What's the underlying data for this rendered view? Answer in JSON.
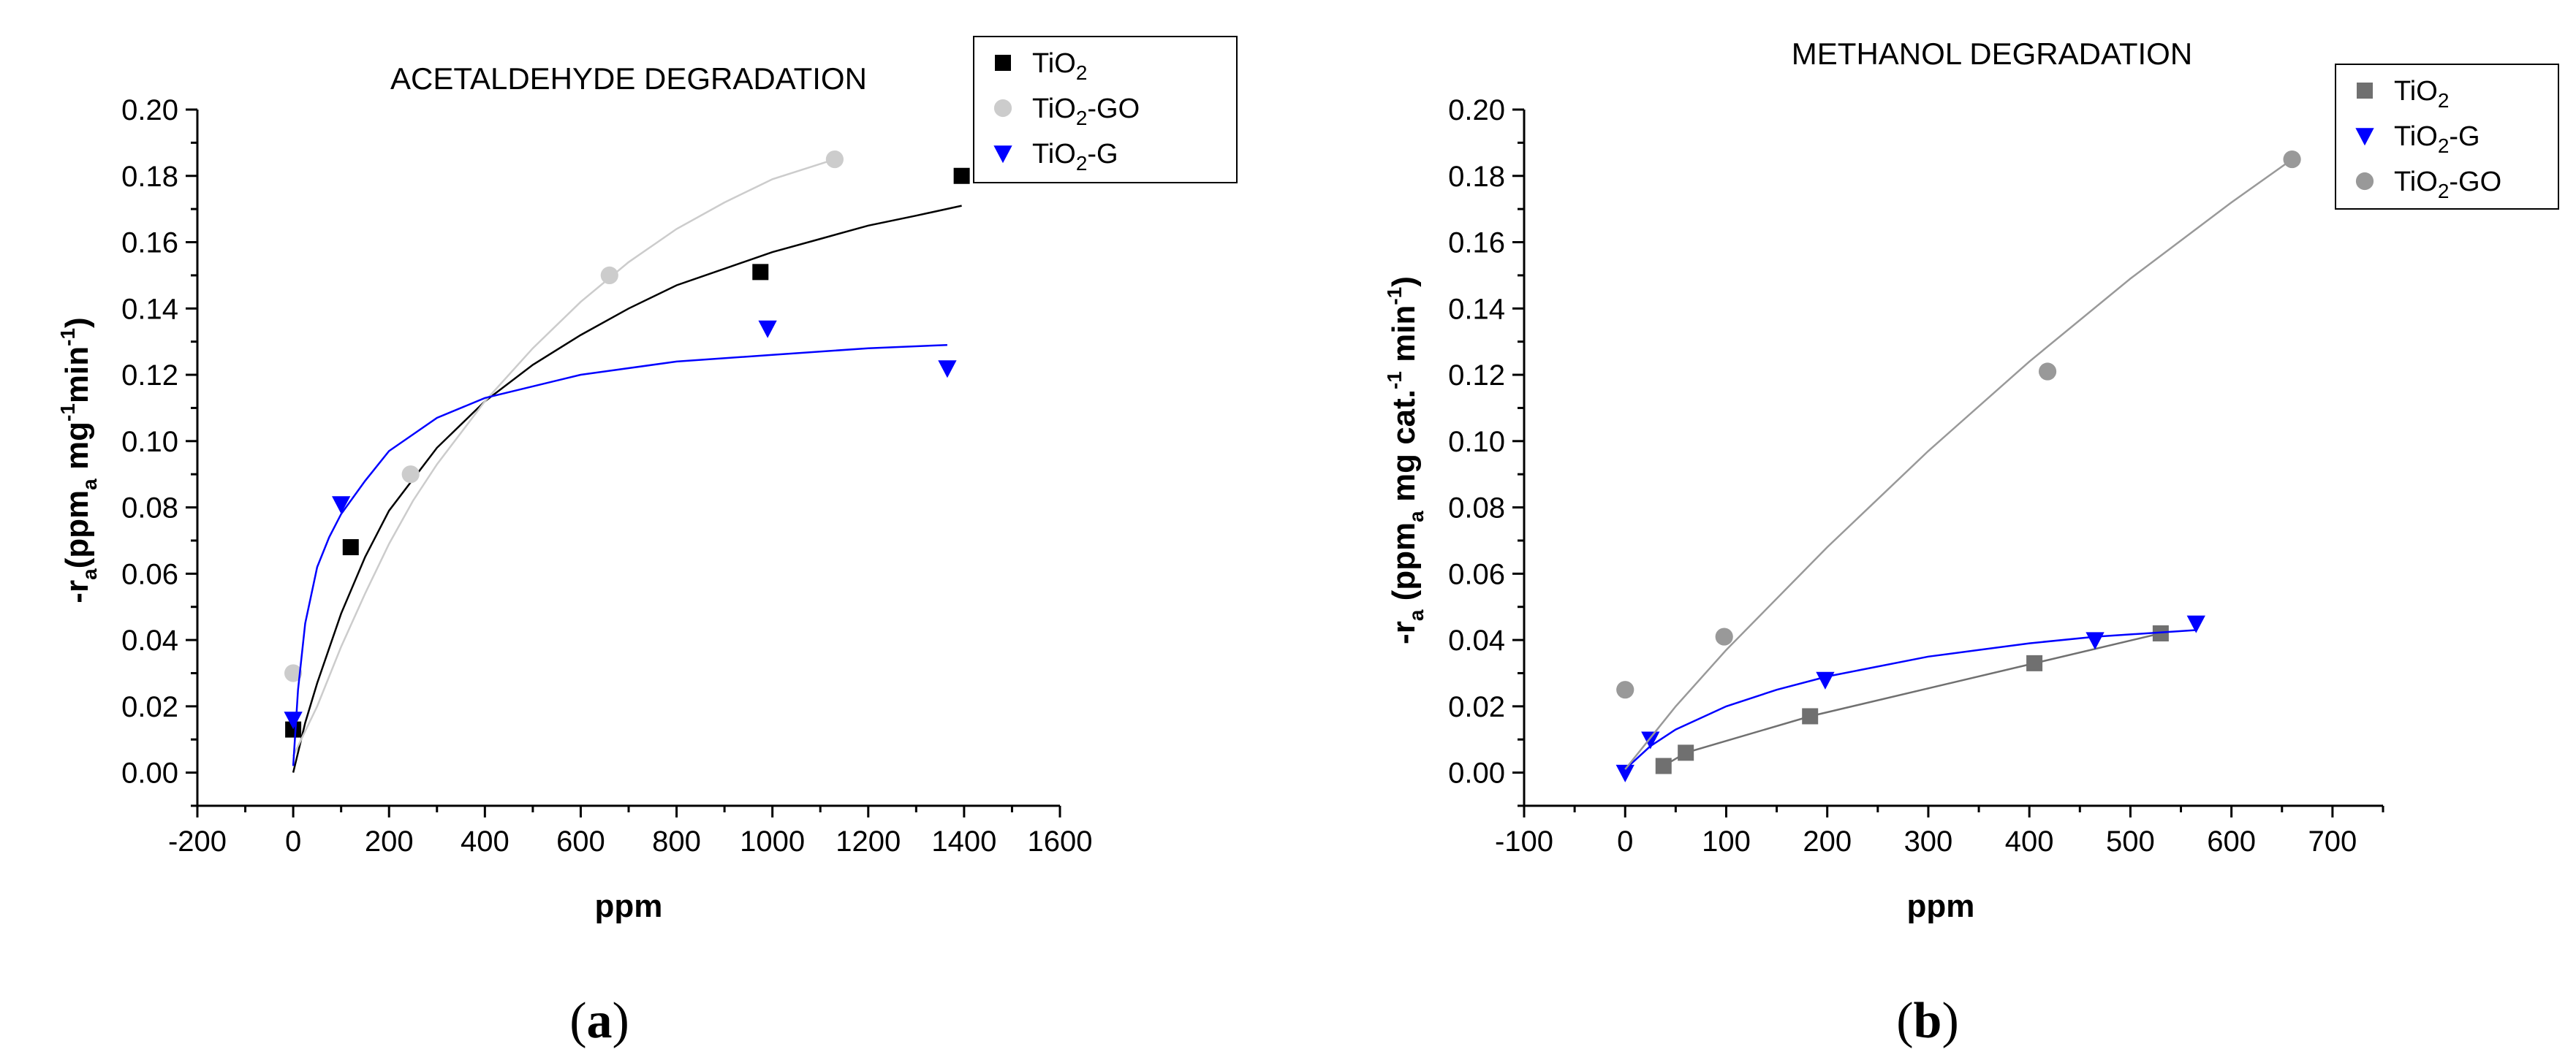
{
  "chart_data": [
    {
      "type": "scatter",
      "panel_label": "a",
      "title": "ACETALDEHYDE DEGRADATION",
      "xlabel": "ppm",
      "ylabel_parts": [
        "-r",
        "a",
        "(ppm",
        "a",
        " mg",
        "-1",
        "min",
        "-1",
        ")"
      ],
      "xlim": [
        -200,
        1600
      ],
      "ylim": [
        -0.01,
        0.2
      ],
      "xticks": [
        "-200",
        "0",
        "200",
        "400",
        "600",
        "800",
        "1000",
        "1200",
        "1400",
        "1600"
      ],
      "yticks": [
        "0.00",
        "0.02",
        "0.04",
        "0.06",
        "0.08",
        "0.10",
        "0.12",
        "0.14",
        "0.16",
        "0.18",
        "0.20"
      ],
      "series": [
        {
          "name_main": "TiO",
          "name_sub": "2",
          "name_suffix": "",
          "marker": "square",
          "color": "#000000",
          "points": [
            [
              0,
              0.013
            ],
            [
              120,
              0.068
            ],
            [
              975,
              0.151
            ],
            [
              1395,
              0.18
            ]
          ],
          "fit": [
            [
              0,
              0.0
            ],
            [
              25,
              0.015
            ],
            [
              50,
              0.027
            ],
            [
              100,
              0.048
            ],
            [
              150,
              0.065
            ],
            [
              200,
              0.079
            ],
            [
              300,
              0.098
            ],
            [
              400,
              0.112
            ],
            [
              500,
              0.123
            ],
            [
              600,
              0.132
            ],
            [
              700,
              0.14
            ],
            [
              800,
              0.147
            ],
            [
              900,
              0.152
            ],
            [
              1000,
              0.157
            ],
            [
              1100,
              0.161
            ],
            [
              1200,
              0.165
            ],
            [
              1300,
              0.168
            ],
            [
              1395,
              0.171
            ]
          ]
        },
        {
          "name_main": "TiO",
          "name_sub": "2",
          "name_suffix": "-GO",
          "marker": "circle",
          "color": "#cccccc",
          "points": [
            [
              0,
              0.03
            ],
            [
              245,
              0.09
            ],
            [
              660,
              0.15
            ],
            [
              1130,
              0.185
            ]
          ],
          "fit": [
            [
              0,
              0.005
            ],
            [
              50,
              0.02
            ],
            [
              100,
              0.038
            ],
            [
              150,
              0.054
            ],
            [
              200,
              0.069
            ],
            [
              250,
              0.082
            ],
            [
              300,
              0.093
            ],
            [
              400,
              0.112
            ],
            [
              500,
              0.128
            ],
            [
              600,
              0.142
            ],
            [
              700,
              0.154
            ],
            [
              800,
              0.164
            ],
            [
              900,
              0.172
            ],
            [
              1000,
              0.179
            ],
            [
              1130,
              0.185
            ]
          ]
        },
        {
          "name_main": "TiO",
          "name_sub": "2",
          "name_suffix": "-G",
          "marker": "triangle-down",
          "color": "#0000ff",
          "points": [
            [
              0,
              0.016
            ],
            [
              100,
              0.081
            ],
            [
              990,
              0.134
            ],
            [
              1365,
              0.122
            ]
          ],
          "fit": [
            [
              0,
              0.002
            ],
            [
              10,
              0.025
            ],
            [
              25,
              0.045
            ],
            [
              50,
              0.062
            ],
            [
              75,
              0.071
            ],
            [
              100,
              0.078
            ],
            [
              150,
              0.088
            ],
            [
              200,
              0.097
            ],
            [
              300,
              0.107
            ],
            [
              400,
              0.113
            ],
            [
              600,
              0.12
            ],
            [
              800,
              0.124
            ],
            [
              1000,
              0.126
            ],
            [
              1200,
              0.128
            ],
            [
              1365,
              0.129
            ]
          ]
        }
      ]
    },
    {
      "type": "scatter",
      "panel_label": "b",
      "title": "METHANOL DEGRADATION",
      "xlabel": "ppm",
      "ylabel_parts": [
        "-r",
        "a",
        " (ppm",
        "a",
        " mg cat.",
        "-1",
        " min",
        "-1",
        ")"
      ],
      "xlim": [
        -100,
        750
      ],
      "ylim": [
        -0.01,
        0.2
      ],
      "xticks": [
        "-100",
        "0",
        "100",
        "200",
        "300",
        "400",
        "500",
        "600",
        "700"
      ],
      "yticks": [
        "0.00",
        "0.02",
        "0.04",
        "0.06",
        "0.08",
        "0.10",
        "0.12",
        "0.14",
        "0.16",
        "0.18",
        "0.20"
      ],
      "series": [
        {
          "name_main": "TiO",
          "name_sub": "2",
          "name_suffix": "",
          "marker": "square",
          "color": "#707070",
          "points": [
            [
              38,
              0.002
            ],
            [
              60,
              0.006
            ],
            [
              183,
              0.017
            ],
            [
              405,
              0.033
            ],
            [
              530,
              0.042
            ]
          ],
          "fit": [
            [
              38,
              0.002
            ],
            [
              60,
              0.006
            ],
            [
              183,
              0.017
            ],
            [
              405,
              0.033
            ],
            [
              530,
              0.042
            ]
          ]
        },
        {
          "name_main": "TiO",
          "name_sub": "2",
          "name_suffix": "-G",
          "marker": "triangle-down",
          "color": "#0000ff",
          "points": [
            [
              0,
              0.0
            ],
            [
              25,
              0.01
            ],
            [
              198,
              0.028
            ],
            [
              465,
              0.04
            ],
            [
              565,
              0.045
            ]
          ],
          "fit": [
            [
              0,
              0.001
            ],
            [
              25,
              0.008
            ],
            [
              50,
              0.013
            ],
            [
              100,
              0.02
            ],
            [
              150,
              0.025
            ],
            [
              200,
              0.029
            ],
            [
              300,
              0.035
            ],
            [
              400,
              0.039
            ],
            [
              465,
              0.041
            ],
            [
              565,
              0.043
            ]
          ]
        },
        {
          "name_main": "TiO",
          "name_sub": "2",
          "name_suffix": "-GO",
          "marker": "circle",
          "color": "#999999",
          "points": [
            [
              0,
              0.025
            ],
            [
              98,
              0.041
            ],
            [
              418,
              0.121
            ],
            [
              660,
              0.185
            ]
          ],
          "fit": [
            [
              0,
              0.001
            ],
            [
              50,
              0.02
            ],
            [
              100,
              0.037
            ],
            [
              200,
              0.068
            ],
            [
              300,
              0.097
            ],
            [
              400,
              0.124
            ],
            [
              500,
              0.149
            ],
            [
              600,
              0.172
            ],
            [
              660,
              0.185
            ]
          ]
        }
      ]
    }
  ]
}
